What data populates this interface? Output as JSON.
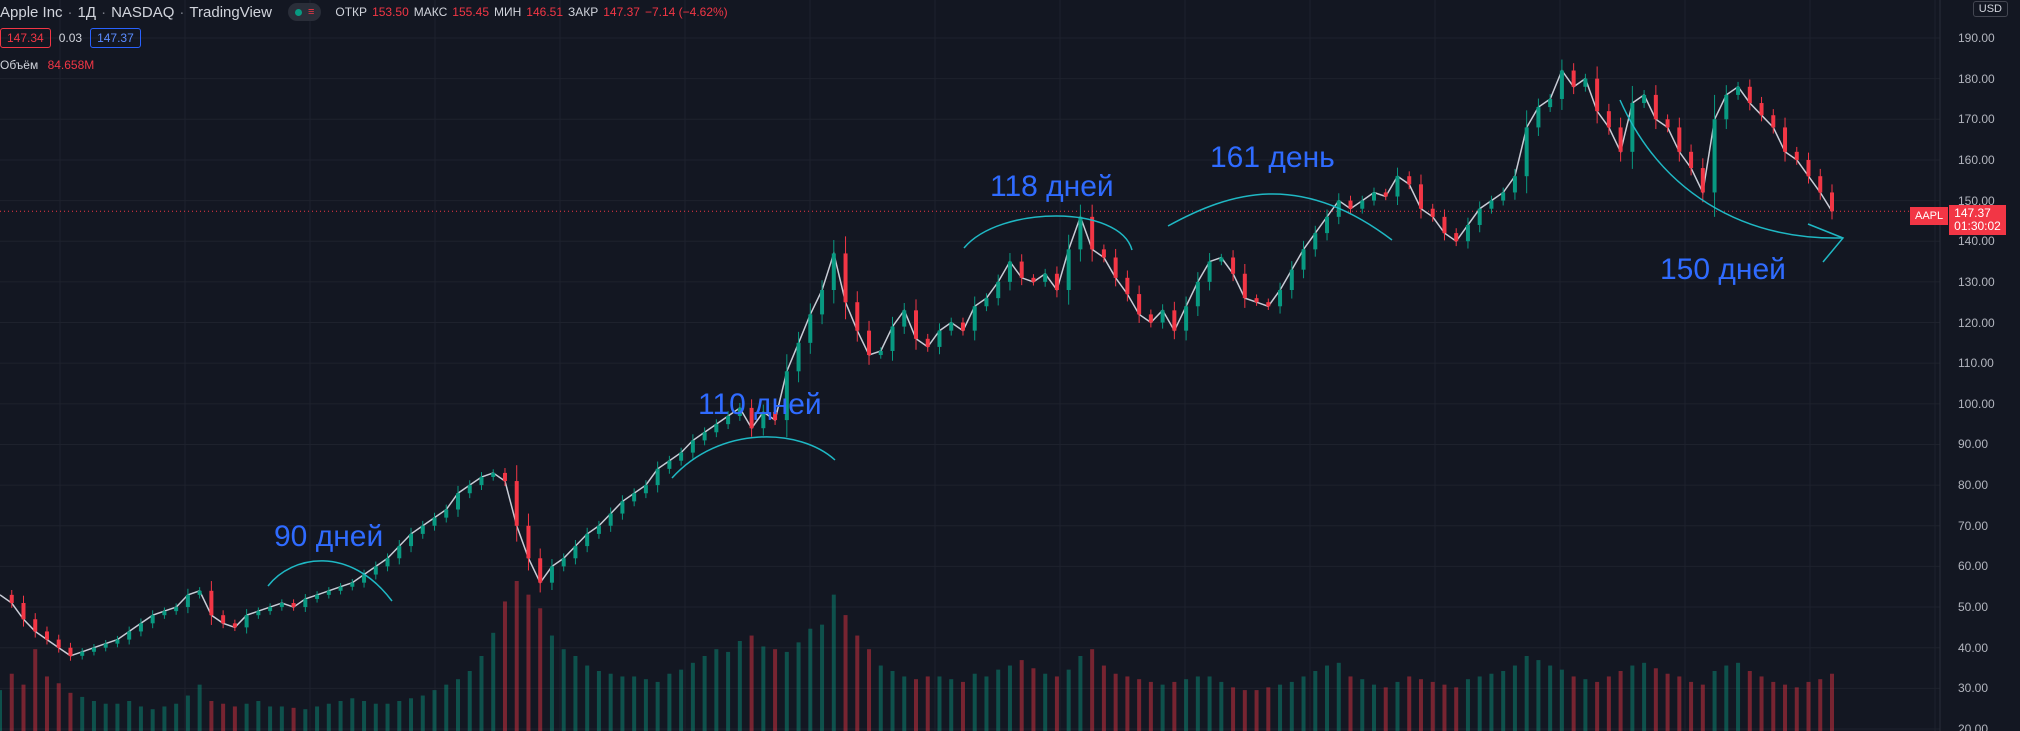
{
  "header": {
    "symbol": "Apple Inc",
    "interval": "1Д",
    "exchange": "NASDAQ",
    "source": "TradingView",
    "ohlc": {
      "open_label": "ОТКР",
      "open": "153.50",
      "high_label": "МАКС",
      "high": "155.45",
      "low_label": "МИН",
      "low": "146.51",
      "close_label": "ЗАКР",
      "close": "147.37",
      "change": "−7.14 (−4.62%)"
    },
    "bid": "147.34",
    "spread": "0.03",
    "ask": "147.37",
    "volume_label": "Объём",
    "volume_value": "84.658M"
  },
  "currency": "USD",
  "price_tag": {
    "symbol": "AAPL",
    "price": "147.37",
    "countdown": "01:30:02"
  },
  "price_axis": [
    "190.00",
    "180.00",
    "170.00",
    "160.00",
    "150.00",
    "140.00",
    "130.00",
    "120.00",
    "110.00",
    "100.00",
    "90.00",
    "80.00",
    "70.00",
    "60.00",
    "50.00",
    "40.00",
    "30.00",
    "20.00"
  ],
  "annotations": [
    {
      "text": "90 дней"
    },
    {
      "text": "110 дней"
    },
    {
      "text": "118 дней"
    },
    {
      "text": "161 день"
    },
    {
      "text": "150 дней"
    }
  ],
  "colors": {
    "up": "#089981",
    "down": "#f23645",
    "annotation": "#2f6bff",
    "arc": "#1fb8c4",
    "background": "#131722"
  },
  "chart_data": {
    "type": "line",
    "title": "",
    "ylim": [
      20,
      190
    ],
    "current_price": 147.37,
    "close": [
      53,
      51,
      47,
      44,
      42,
      40,
      38,
      39,
      40,
      41,
      42,
      44,
      46,
      48,
      49,
      50,
      53,
      54,
      48,
      46,
      45,
      48,
      49,
      50,
      51,
      50,
      52,
      53,
      54,
      55,
      56,
      58,
      60,
      62,
      65,
      68,
      70,
      72,
      74,
      78,
      80,
      82,
      83,
      81,
      70,
      62,
      56,
      60,
      62,
      65,
      68,
      70,
      73,
      76,
      78,
      80,
      84,
      86,
      88,
      91,
      93,
      95,
      97,
      99,
      94,
      98,
      96,
      108,
      115,
      122,
      128,
      137,
      125,
      118,
      112,
      113,
      119,
      123,
      116,
      114,
      118,
      120,
      118,
      124,
      126,
      130,
      135,
      131,
      130,
      132,
      128,
      138,
      146,
      138,
      136,
      131,
      127,
      122,
      120,
      123,
      118,
      124,
      130,
      135,
      136,
      132,
      126,
      125,
      124,
      128,
      133,
      138,
      142,
      146,
      150,
      148,
      150,
      152,
      151,
      156,
      154,
      148,
      146,
      142,
      140,
      144,
      148,
      150,
      152,
      156,
      168,
      173,
      175,
      182,
      178,
      180,
      172,
      168,
      162,
      174,
      176,
      170,
      168,
      162,
      158,
      152,
      170,
      176,
      178,
      174,
      171,
      168,
      162,
      160,
      156,
      152,
      147.37
    ],
    "volume": [
      30,
      42,
      34,
      60,
      40,
      35,
      28,
      25,
      22,
      20,
      20,
      22,
      18,
      16,
      18,
      20,
      26,
      34,
      22,
      20,
      18,
      20,
      22,
      18,
      18,
      17,
      16,
      18,
      20,
      22,
      24,
      22,
      20,
      20,
      22,
      24,
      26,
      30,
      34,
      38,
      44,
      55,
      72,
      95,
      110,
      100,
      90,
      70,
      60,
      55,
      48,
      44,
      42,
      40,
      40,
      38,
      36,
      42,
      45,
      50,
      55,
      60,
      58,
      66,
      70,
      62,
      60,
      58,
      65,
      75,
      78,
      100,
      85,
      70,
      60,
      48,
      44,
      40,
      38,
      40,
      40,
      38,
      36,
      42,
      40,
      45,
      48,
      52,
      46,
      42,
      40,
      45,
      55,
      60,
      48,
      42,
      40,
      38,
      36,
      34,
      36,
      38,
      40,
      40,
      36,
      32,
      30,
      30,
      32,
      34,
      36,
      40,
      44,
      48,
      50,
      40,
      38,
      34,
      32,
      36,
      40,
      38,
      36,
      34,
      32,
      38,
      40,
      42,
      44,
      48,
      55,
      52,
      48,
      45,
      40,
      38,
      36,
      40,
      44,
      48,
      50,
      46,
      42,
      40,
      36,
      34,
      44,
      48,
      50,
      44,
      40,
      36,
      34,
      32,
      36,
      38,
      42
    ]
  }
}
